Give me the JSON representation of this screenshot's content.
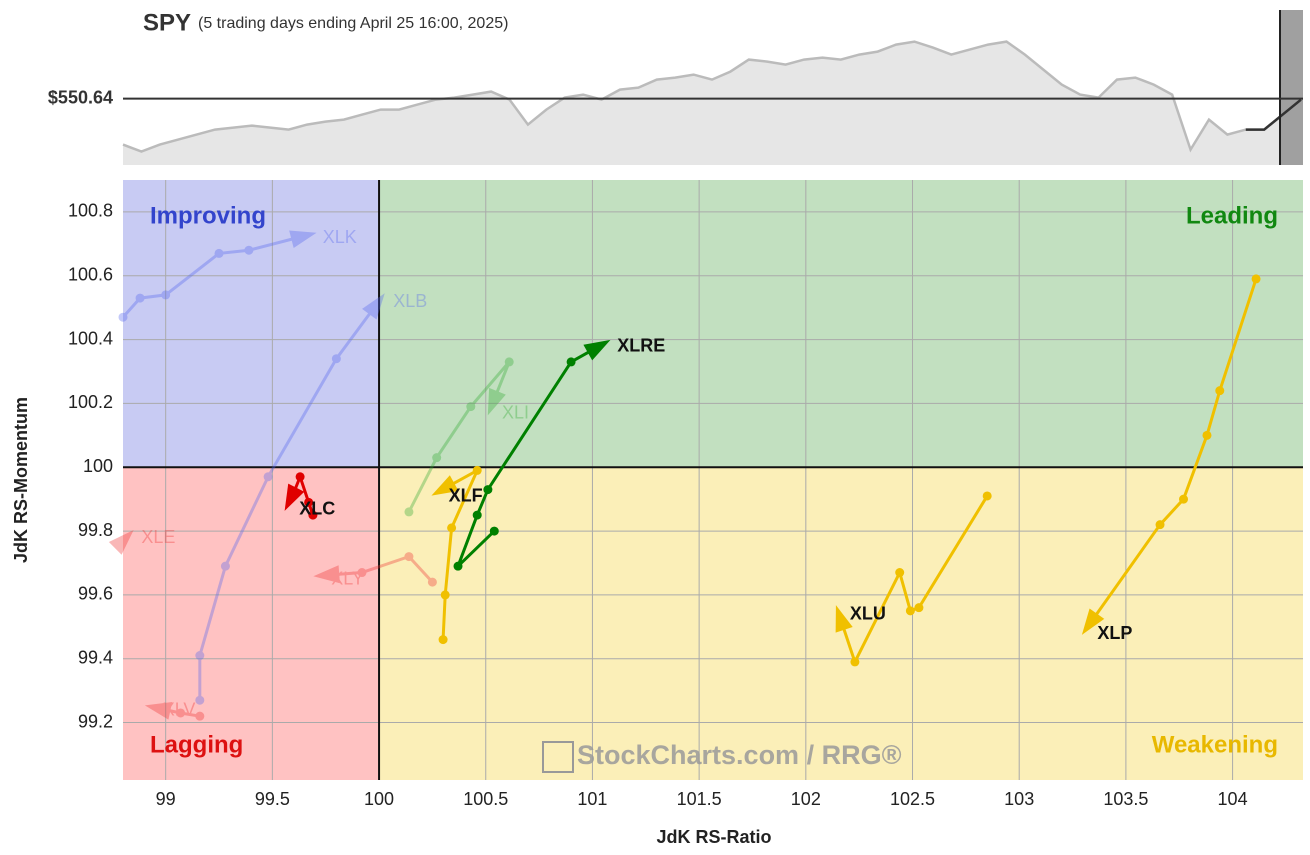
{
  "chart_data": [
    {
      "type": "line",
      "title": "SPY",
      "subtitle": "(5 trading days ending April 25 16:00, 2025)",
      "reference_line": {
        "value": 550.64,
        "label": "$550.64"
      },
      "ylim": [
        544.0,
        559.5
      ],
      "values": [
        546.04,
        545.34,
        546.04,
        546.54,
        547.04,
        547.54,
        547.74,
        547.94,
        547.74,
        547.54,
        548.04,
        548.34,
        548.54,
        549.04,
        549.54,
        549.54,
        550.04,
        550.54,
        550.74,
        551.04,
        551.34,
        550.54,
        548.04,
        549.54,
        550.74,
        551.04,
        550.54,
        551.54,
        551.74,
        552.54,
        552.74,
        553.04,
        552.54,
        553.34,
        554.54,
        554.34,
        554.04,
        554.54,
        554.74,
        554.54,
        555.04,
        555.34,
        556.04,
        556.34,
        555.74,
        555.04,
        555.54,
        556.04,
        556.34,
        555.04,
        553.54,
        552.04,
        551.04,
        550.74,
        552.54,
        552.74,
        552.04,
        551.04,
        545.54,
        548.54,
        547.04,
        547.54,
        547.54,
        549.04,
        550.54
      ],
      "color": "#bbbbbb"
    },
    {
      "type": "scatter",
      "xlabel": "JdK RS-Ratio",
      "ylabel": "JdK RS-Momentum",
      "xlim": [
        98.8,
        104.33
      ],
      "ylim": [
        99.02,
        100.9
      ],
      "xticks": [
        99,
        99.5,
        100,
        100.5,
        101,
        101.5,
        102,
        102.5,
        103,
        103.5,
        104
      ],
      "yticks": [
        99.2,
        99.4,
        99.6,
        99.8,
        100,
        100.2,
        100.4,
        100.6,
        100.8
      ],
      "grid": true,
      "center": {
        "x": 100,
        "y": 100
      },
      "quadrants": [
        {
          "name": "Improving",
          "color": "#3344cc",
          "background": "#c8cbf3"
        },
        {
          "name": "Leading",
          "color": "#118811",
          "background": "#c2e0c0"
        },
        {
          "name": "Lagging",
          "color": "#dd1111",
          "background": "#ffc2c2"
        },
        {
          "name": "Weakening",
          "color": "#e8b800",
          "background": "#fbefb8"
        }
      ],
      "watermark": "StockCharts.com / RRG®",
      "series": [
        {
          "name": "XLK",
          "color": "#5566ee",
          "faded": true,
          "x": [
            98.8,
            98.88,
            99.0,
            99.25,
            99.39,
            99.68
          ],
          "y": [
            100.47,
            100.53,
            100.54,
            100.67,
            100.68,
            100.73
          ]
        },
        {
          "name": "XLB",
          "color": "#5566ee",
          "faded": true,
          "x": [
            99.16,
            99.16,
            99.28,
            99.48,
            99.8,
            100.01
          ],
          "y": [
            99.27,
            99.41,
            99.69,
            99.97,
            100.34,
            100.53
          ]
        },
        {
          "name": "XLI",
          "color": "#33aa33",
          "faded": true,
          "x": [
            100.14,
            100.27,
            100.43,
            100.61,
            100.52
          ],
          "y": [
            99.86,
            100.03,
            100.19,
            100.33,
            100.18
          ]
        },
        {
          "name": "XLE",
          "color": "#ee3333",
          "faded": true,
          "x": [
            98.8,
            98.83
          ],
          "y": [
            99.77,
            99.79
          ]
        },
        {
          "name": "XLY",
          "color": "#ee3333",
          "faded": true,
          "x": [
            100.25,
            100.14,
            99.92,
            99.72
          ],
          "y": [
            99.64,
            99.72,
            99.67,
            99.66
          ]
        },
        {
          "name": "XLV",
          "color": "#ee3333",
          "faded": true,
          "x": [
            99.16,
            99.07,
            98.93
          ],
          "y": [
            99.22,
            99.23,
            99.25
          ]
        },
        {
          "name": "XLC",
          "color": "#e00000",
          "faded": false,
          "x": [
            99.69,
            99.67,
            99.63,
            99.6,
            99.57
          ],
          "y": [
            99.85,
            99.89,
            99.97,
            99.92,
            99.88
          ]
        },
        {
          "name": "XLRE",
          "color": "#008000",
          "faded": false,
          "x": [
            100.54,
            100.37,
            100.46,
            100.51,
            100.9,
            101.06
          ],
          "y": [
            99.8,
            99.69,
            99.85,
            99.93,
            100.33,
            100.39
          ]
        },
        {
          "name": "XLF",
          "color": "#f0c000",
          "faded": false,
          "x": [
            100.3,
            100.31,
            100.34,
            100.46,
            100.27
          ],
          "y": [
            99.46,
            99.6,
            99.81,
            99.99,
            99.92
          ]
        },
        {
          "name": "XLU",
          "color": "#f0c000",
          "faded": false,
          "x": [
            102.85,
            102.53,
            102.49,
            102.44,
            102.23,
            102.15
          ],
          "y": [
            99.91,
            99.56,
            99.55,
            99.67,
            99.39,
            99.55
          ]
        },
        {
          "name": "XLP",
          "color": "#f0c000",
          "faded": false,
          "x": [
            104.11,
            103.94,
            103.88,
            103.77,
            103.66,
            103.31
          ],
          "y": [
            100.59,
            100.24,
            100.1,
            99.9,
            99.82,
            99.49
          ]
        }
      ]
    }
  ]
}
